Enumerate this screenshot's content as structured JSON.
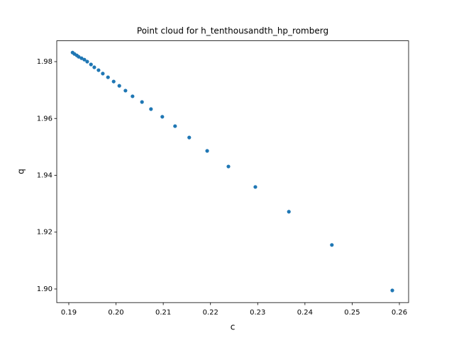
{
  "chart_data": {
    "type": "scatter",
    "title": "Point cloud for h_tenthousandth_hp_romberg",
    "x_label": "c",
    "y_label": "q",
    "color": "#1f77b4",
    "x": [
      0.1908,
      0.1912,
      0.1917,
      0.1921,
      0.1927,
      0.1933,
      0.1939,
      0.1947,
      0.1954,
      0.1963,
      0.1972,
      0.1983,
      0.1995,
      0.2007,
      0.202,
      0.2035,
      0.2055,
      0.2074,
      0.2098,
      0.2125,
      0.2155,
      0.2193,
      0.2238,
      0.2295,
      0.2366,
      0.2457,
      0.2585
    ],
    "values": [
      1.9832,
      1.9827,
      1.9822,
      1.9817,
      1.9812,
      1.9807,
      1.98,
      1.979,
      1.978,
      1.977,
      1.9758,
      1.9745,
      1.973,
      1.9715,
      1.9698,
      1.9678,
      1.9658,
      1.9633,
      1.9606,
      1.9573,
      1.9533,
      1.9486,
      1.9431,
      1.9359,
      1.9272,
      1.9155,
      1.8995
    ],
    "xlim": [
      0.18745,
      0.26195
    ],
    "ylim": [
      1.89521,
      1.98733
    ],
    "xticks": [
      0.19,
      {
        "value": 0.2,
        "label": "0.20"
      },
      0.21,
      0.22,
      0.23,
      0.24,
      0.25,
      0.26
    ],
    "yticks": [
      {
        "value": 1.9,
        "label": "1.90"
      },
      1.92,
      1.94,
      1.96,
      1.98
    ]
  }
}
